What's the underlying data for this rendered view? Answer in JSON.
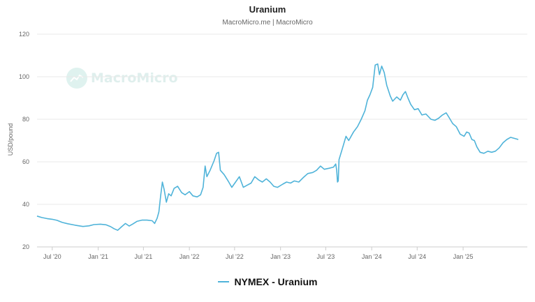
{
  "header": {
    "title": "Uranium",
    "subtitle": "MacroMicro.me | MacroMicro"
  },
  "watermark": {
    "text": "MacroMicro",
    "icon": "chart-trend-icon"
  },
  "legend": {
    "label": "NYMEX - Uranium"
  },
  "colors": {
    "series": "#4fb3d9",
    "grid": "#e8e8e8",
    "axis_text": "#666666"
  },
  "chart_data": {
    "type": "line",
    "title": "Uranium",
    "subtitle": "MacroMicro.me | MacroMicro",
    "xlabel": "",
    "ylabel": "USD/pound",
    "ylim": [
      20,
      120
    ],
    "yticks": [
      20,
      40,
      60,
      80,
      100,
      120
    ],
    "xlim": [
      "2020-05-01",
      "2025-09-15"
    ],
    "xticks": [
      {
        "date": "2020-07-01",
        "label": "Jul '20"
      },
      {
        "date": "2021-01-01",
        "label": "Jan '21"
      },
      {
        "date": "2021-07-01",
        "label": "Jul '21"
      },
      {
        "date": "2022-01-01",
        "label": "Jan '22"
      },
      {
        "date": "2022-07-01",
        "label": "Jul '22"
      },
      {
        "date": "2023-01-01",
        "label": "Jan '23"
      },
      {
        "date": "2023-07-01",
        "label": "Jul '23"
      },
      {
        "date": "2024-01-01",
        "label": "Jan '24"
      },
      {
        "date": "2024-07-01",
        "label": "Jul '24"
      },
      {
        "date": "2025-01-01",
        "label": "Jan '25"
      }
    ],
    "grid": true,
    "legend_position": "bottom-center",
    "series": [
      {
        "name": "NYMEX - Uranium",
        "points": [
          [
            "2020-05-01",
            34.5
          ],
          [
            "2020-05-20",
            33.8
          ],
          [
            "2020-06-10",
            33.3
          ],
          [
            "2020-07-01",
            33.0
          ],
          [
            "2020-07-20",
            32.5
          ],
          [
            "2020-08-10",
            31.5
          ],
          [
            "2020-09-01",
            30.9
          ],
          [
            "2020-10-01",
            30.2
          ],
          [
            "2020-11-01",
            29.6
          ],
          [
            "2020-11-25",
            29.9
          ],
          [
            "2020-12-15",
            30.5
          ],
          [
            "2021-01-10",
            30.7
          ],
          [
            "2021-02-01",
            30.4
          ],
          [
            "2021-02-20",
            29.5
          ],
          [
            "2021-03-05",
            28.6
          ],
          [
            "2021-03-20",
            27.8
          ],
          [
            "2021-04-05",
            29.5
          ],
          [
            "2021-04-20",
            31.0
          ],
          [
            "2021-05-05",
            29.8
          ],
          [
            "2021-05-20",
            30.8
          ],
          [
            "2021-06-05",
            32.0
          ],
          [
            "2021-06-25",
            32.6
          ],
          [
            "2021-07-15",
            32.6
          ],
          [
            "2021-08-05",
            32.3
          ],
          [
            "2021-08-15",
            31.0
          ],
          [
            "2021-08-25",
            33.5
          ],
          [
            "2021-09-01",
            36.5
          ],
          [
            "2021-09-08",
            44.0
          ],
          [
            "2021-09-15",
            50.5
          ],
          [
            "2021-09-22",
            47.0
          ],
          [
            "2021-10-01",
            41.0
          ],
          [
            "2021-10-10",
            45.0
          ],
          [
            "2021-10-20",
            44.0
          ],
          [
            "2021-11-01",
            47.5
          ],
          [
            "2021-11-15",
            48.5
          ],
          [
            "2021-12-01",
            45.5
          ],
          [
            "2021-12-15",
            44.5
          ],
          [
            "2022-01-01",
            46.0
          ],
          [
            "2022-01-15",
            44.0
          ],
          [
            "2022-02-01",
            43.5
          ],
          [
            "2022-02-15",
            44.5
          ],
          [
            "2022-02-25",
            48.0
          ],
          [
            "2022-03-05",
            58.0
          ],
          [
            "2022-03-12",
            53.0
          ],
          [
            "2022-03-25",
            56.0
          ],
          [
            "2022-04-10",
            60.5
          ],
          [
            "2022-04-20",
            64.0
          ],
          [
            "2022-04-28",
            64.5
          ],
          [
            "2022-05-05",
            56.0
          ],
          [
            "2022-05-20",
            54.0
          ],
          [
            "2022-06-05",
            51.0
          ],
          [
            "2022-06-20",
            48.0
          ],
          [
            "2022-07-05",
            50.5
          ],
          [
            "2022-07-20",
            53.0
          ],
          [
            "2022-08-05",
            48.0
          ],
          [
            "2022-08-20",
            49.0
          ],
          [
            "2022-09-05",
            50.0
          ],
          [
            "2022-09-20",
            53.0
          ],
          [
            "2022-10-05",
            51.5
          ],
          [
            "2022-10-20",
            50.5
          ],
          [
            "2022-11-05",
            52.0
          ],
          [
            "2022-11-20",
            50.5
          ],
          [
            "2022-12-05",
            48.5
          ],
          [
            "2022-12-20",
            48.0
          ],
          [
            "2023-01-10",
            49.5
          ],
          [
            "2023-01-25",
            50.5
          ],
          [
            "2023-02-10",
            50.0
          ],
          [
            "2023-02-25",
            51.0
          ],
          [
            "2023-03-15",
            50.5
          ],
          [
            "2023-04-01",
            52.5
          ],
          [
            "2023-04-20",
            54.5
          ],
          [
            "2023-05-10",
            55.0
          ],
          [
            "2023-05-25",
            56.0
          ],
          [
            "2023-06-10",
            58.0
          ],
          [
            "2023-06-25",
            56.5
          ],
          [
            "2023-07-15",
            57.0
          ],
          [
            "2023-08-01",
            57.5
          ],
          [
            "2023-08-10",
            59.0
          ],
          [
            "2023-08-14",
            56.0
          ],
          [
            "2023-08-17",
            50.5
          ],
          [
            "2023-08-20",
            51.0
          ],
          [
            "2023-08-23",
            61.0
          ],
          [
            "2023-09-05",
            66.0
          ],
          [
            "2023-09-20",
            72.0
          ],
          [
            "2023-10-01",
            70.0
          ],
          [
            "2023-10-20",
            74.0
          ],
          [
            "2023-11-05",
            76.5
          ],
          [
            "2023-11-20",
            80.0
          ],
          [
            "2023-12-05",
            84.0
          ],
          [
            "2023-12-15",
            89.0
          ],
          [
            "2023-12-25",
            91.5
          ],
          [
            "2024-01-05",
            95.0
          ],
          [
            "2024-01-15",
            105.5
          ],
          [
            "2024-01-25",
            106.0
          ],
          [
            "2024-02-01",
            101.0
          ],
          [
            "2024-02-10",
            105.0
          ],
          [
            "2024-02-20",
            102.0
          ],
          [
            "2024-03-01",
            96.0
          ],
          [
            "2024-03-15",
            91.0
          ],
          [
            "2024-03-25",
            88.5
          ],
          [
            "2024-04-10",
            90.5
          ],
          [
            "2024-04-25",
            89.0
          ],
          [
            "2024-05-05",
            91.5
          ],
          [
            "2024-05-15",
            93.0
          ],
          [
            "2024-05-25",
            90.0
          ],
          [
            "2024-06-05",
            87.0
          ],
          [
            "2024-06-20",
            84.5
          ],
          [
            "2024-07-05",
            85.0
          ],
          [
            "2024-07-20",
            82.0
          ],
          [
            "2024-08-05",
            82.5
          ],
          [
            "2024-08-25",
            80.0
          ],
          [
            "2024-09-10",
            79.5
          ],
          [
            "2024-09-25",
            80.5
          ],
          [
            "2024-10-10",
            82.0
          ],
          [
            "2024-10-25",
            83.0
          ],
          [
            "2024-11-05",
            81.0
          ],
          [
            "2024-11-20",
            78.0
          ],
          [
            "2024-12-05",
            76.5
          ],
          [
            "2024-12-20",
            73.0
          ],
          [
            "2025-01-05",
            72.0
          ],
          [
            "2025-01-15",
            74.0
          ],
          [
            "2025-01-25",
            73.5
          ],
          [
            "2025-02-05",
            70.5
          ],
          [
            "2025-02-15",
            70.0
          ],
          [
            "2025-02-25",
            67.0
          ],
          [
            "2025-03-10",
            64.5
          ],
          [
            "2025-03-25",
            64.0
          ],
          [
            "2025-04-10",
            65.0
          ],
          [
            "2025-04-25",
            64.5
          ],
          [
            "2025-05-10",
            65.0
          ],
          [
            "2025-05-25",
            66.5
          ],
          [
            "2025-06-10",
            69.0
          ],
          [
            "2025-06-25",
            70.5
          ],
          [
            "2025-07-10",
            71.5
          ],
          [
            "2025-07-25",
            71.0
          ],
          [
            "2025-08-10",
            70.5
          ]
        ]
      }
    ]
  }
}
